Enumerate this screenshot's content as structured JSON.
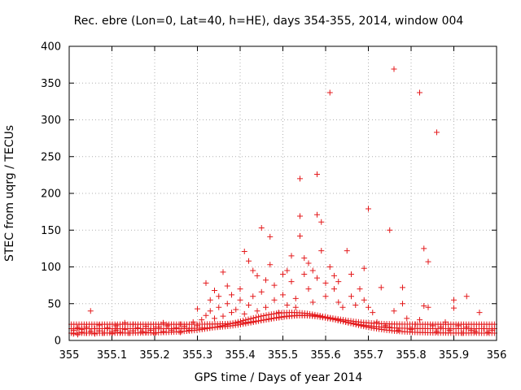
{
  "chart_data": {
    "type": "scatter",
    "title": "Rec. ebre (Lon=0, Lat=40, h=HE), days 354-355, 2014, window 004",
    "xlabel": "GPS time / Days of year 2014",
    "ylabel": "STEC from uqrg / TECUs",
    "xlim": [
      355,
      356
    ],
    "ylim": [
      0,
      400
    ],
    "x_ticks": [
      355,
      355.1,
      355.2,
      355.3,
      355.4,
      355.5,
      355.6,
      355.7,
      355.8,
      355.9,
      356
    ],
    "x_tick_labels": [
      "355",
      "355.1",
      "355.2",
      "355.3",
      "355.4",
      "355.5",
      "355.6",
      "355.7",
      "355.8",
      "355.9",
      "356"
    ],
    "y_ticks": [
      0,
      50,
      100,
      150,
      200,
      250,
      300,
      350,
      400
    ],
    "y_tick_labels": [
      "0",
      "50",
      "100",
      "150",
      "200",
      "250",
      "300",
      "350",
      "400"
    ],
    "grid": true,
    "marker": "+",
    "series_color": "#e41a1c",
    "points": [
      [
        355.01,
        9
      ],
      [
        355.01,
        14
      ],
      [
        355.02,
        8
      ],
      [
        355.02,
        17
      ],
      [
        355.03,
        11
      ],
      [
        355.03,
        15
      ],
      [
        355.04,
        10
      ],
      [
        355.04,
        18
      ],
      [
        355.05,
        40
      ],
      [
        355.05,
        12
      ],
      [
        355.06,
        16
      ],
      [
        355.06,
        9
      ],
      [
        355.07,
        21
      ],
      [
        355.07,
        13
      ],
      [
        355.08,
        10
      ],
      [
        355.09,
        17
      ],
      [
        355.1,
        12
      ],
      [
        355.1,
        9
      ],
      [
        355.11,
        20
      ],
      [
        355.11,
        14
      ],
      [
        355.12,
        11
      ],
      [
        355.13,
        24
      ],
      [
        355.13,
        15
      ],
      [
        355.14,
        10
      ],
      [
        355.15,
        13
      ],
      [
        355.15,
        22
      ],
      [
        355.16,
        17
      ],
      [
        355.17,
        12
      ],
      [
        355.18,
        19
      ],
      [
        355.18,
        11
      ],
      [
        355.19,
        14
      ],
      [
        355.2,
        16
      ],
      [
        355.2,
        9
      ],
      [
        355.21,
        18
      ],
      [
        355.22,
        12
      ],
      [
        355.22,
        24
      ],
      [
        355.23,
        20
      ],
      [
        355.24,
        14
      ],
      [
        355.25,
        17
      ],
      [
        355.26,
        11
      ],
      [
        355.26,
        22
      ],
      [
        355.27,
        19
      ],
      [
        355.28,
        14
      ],
      [
        355.29,
        25
      ],
      [
        355.3,
        20
      ],
      [
        355.3,
        43
      ],
      [
        355.31,
        28
      ],
      [
        355.32,
        34
      ],
      [
        355.32,
        78
      ],
      [
        355.33,
        40
      ],
      [
        355.33,
        55
      ],
      [
        355.34,
        30
      ],
      [
        355.34,
        68
      ],
      [
        355.35,
        45
      ],
      [
        355.35,
        60
      ],
      [
        355.36,
        33
      ],
      [
        355.36,
        93
      ],
      [
        355.37,
        50
      ],
      [
        355.37,
        74
      ],
      [
        355.38,
        38
      ],
      [
        355.38,
        62
      ],
      [
        355.39,
        42
      ],
      [
        355.4,
        55
      ],
      [
        355.4,
        70
      ],
      [
        355.41,
        36
      ],
      [
        355.41,
        121
      ],
      [
        355.42,
        108
      ],
      [
        355.42,
        48
      ],
      [
        355.43,
        95
      ],
      [
        355.43,
        60
      ],
      [
        355.44,
        40
      ],
      [
        355.44,
        88
      ],
      [
        355.45,
        153
      ],
      [
        355.45,
        66
      ],
      [
        355.46,
        82
      ],
      [
        355.46,
        45
      ],
      [
        355.47,
        141
      ],
      [
        355.47,
        103
      ],
      [
        355.48,
        55
      ],
      [
        355.48,
        75
      ],
      [
        355.49,
        38
      ],
      [
        355.5,
        90
      ],
      [
        355.5,
        62
      ],
      [
        355.51,
        48
      ],
      [
        355.51,
        95
      ],
      [
        355.52,
        80
      ],
      [
        355.52,
        115
      ],
      [
        355.53,
        57
      ],
      [
        355.53,
        45
      ],
      [
        355.54,
        220
      ],
      [
        355.54,
        169
      ],
      [
        355.54,
        142
      ],
      [
        355.55,
        112
      ],
      [
        355.55,
        90
      ],
      [
        355.56,
        70
      ],
      [
        355.56,
        105
      ],
      [
        355.57,
        52
      ],
      [
        355.57,
        95
      ],
      [
        355.58,
        226
      ],
      [
        355.58,
        171
      ],
      [
        355.58,
        85
      ],
      [
        355.59,
        161
      ],
      [
        355.59,
        122
      ],
      [
        355.6,
        60
      ],
      [
        355.6,
        78
      ],
      [
        355.61,
        337
      ],
      [
        355.61,
        100
      ],
      [
        355.62,
        88
      ],
      [
        355.62,
        70
      ],
      [
        355.63,
        52
      ],
      [
        355.63,
        80
      ],
      [
        355.64,
        45
      ],
      [
        355.65,
        122
      ],
      [
        355.66,
        90
      ],
      [
        355.66,
        60
      ],
      [
        355.67,
        48
      ],
      [
        355.68,
        70
      ],
      [
        355.69,
        98
      ],
      [
        355.69,
        55
      ],
      [
        355.7,
        45
      ],
      [
        355.7,
        179
      ],
      [
        355.71,
        38
      ],
      [
        355.72,
        25
      ],
      [
        355.73,
        72
      ],
      [
        355.74,
        20
      ],
      [
        355.75,
        150
      ],
      [
        355.75,
        18
      ],
      [
        355.76,
        369
      ],
      [
        355.76,
        40
      ],
      [
        355.77,
        14
      ],
      [
        355.78,
        72
      ],
      [
        355.78,
        50
      ],
      [
        355.79,
        30
      ],
      [
        355.8,
        15
      ],
      [
        355.81,
        22
      ],
      [
        355.82,
        337
      ],
      [
        355.82,
        28
      ],
      [
        355.83,
        125
      ],
      [
        355.83,
        47
      ],
      [
        355.84,
        107
      ],
      [
        355.84,
        45
      ],
      [
        355.85,
        20
      ],
      [
        355.86,
        283
      ],
      [
        355.86,
        12
      ],
      [
        355.87,
        18
      ],
      [
        355.88,
        25
      ],
      [
        355.89,
        14
      ],
      [
        355.9,
        44
      ],
      [
        355.9,
        55
      ],
      [
        355.91,
        20
      ],
      [
        355.92,
        10
      ],
      [
        355.93,
        60
      ],
      [
        355.93,
        18
      ],
      [
        355.94,
        14
      ],
      [
        355.95,
        12
      ],
      [
        355.96,
        38
      ],
      [
        355.97,
        16
      ],
      [
        355.98,
        11
      ],
      [
        355.99,
        14
      ]
    ],
    "band_curves": [
      {
        "center": 355.52,
        "width": 0.16,
        "amp": 28,
        "base": 10
      },
      {
        "center": 355.54,
        "width": 0.13,
        "amp": 18,
        "base": 16
      },
      {
        "center": 355.55,
        "width": 0.11,
        "amp": 12,
        "base": 22
      }
    ]
  }
}
